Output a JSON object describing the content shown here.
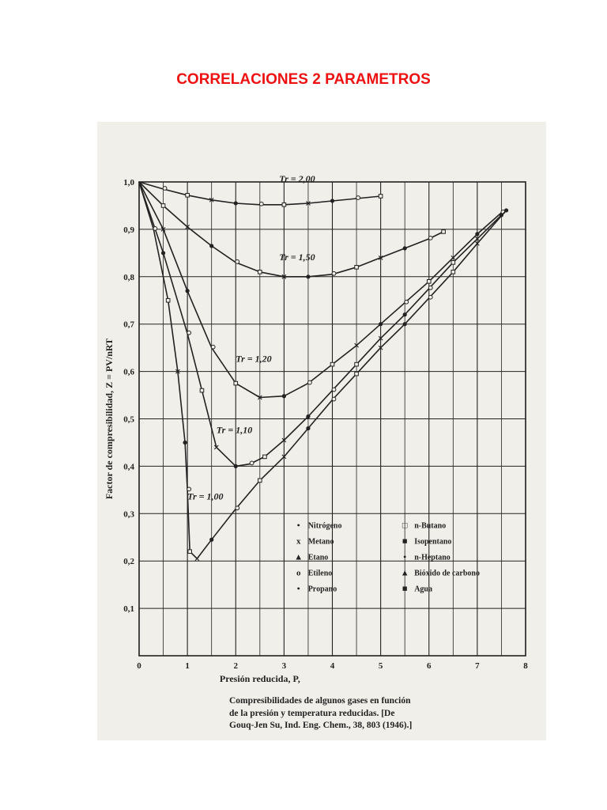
{
  "document": {
    "title": "CORRELACIONES 2 PARAMETROS"
  },
  "colors": {
    "title": "#ee1111",
    "ink": "#222222",
    "paper": "#f1efe9"
  },
  "chart_data": {
    "type": "line",
    "title": "",
    "xlabel": "Presión reducida, P,",
    "ylabel": "Factor de compresibilidad, Z = PV/nRT",
    "xlim": [
      0,
      8
    ],
    "ylim": [
      0,
      1.0
    ],
    "x_ticks": [
      "0",
      "1",
      "2",
      "3",
      "4",
      "5",
      "6",
      "7",
      "8"
    ],
    "y_ticks": [
      "0,1",
      "0,2",
      "0,3",
      "0,4",
      "0,5",
      "0,6",
      "0,7",
      "0,8",
      "0,9",
      "1,0"
    ],
    "grid": true,
    "curve_labels": [
      "Tr = 2,00",
      "Tr = 1,50",
      "Tr = 1,20",
      "Tr = 1,10",
      "Tr = 1,00"
    ],
    "series": [
      {
        "name": "Tr = 2,00",
        "x": [
          0,
          0.5,
          1.0,
          1.5,
          2.0,
          2.5,
          3.0,
          3.5,
          4.0,
          4.5,
          5.0
        ],
        "y": [
          1.0,
          0.985,
          0.972,
          0.962,
          0.955,
          0.952,
          0.952,
          0.955,
          0.96,
          0.965,
          0.97
        ]
      },
      {
        "name": "Tr = 1,50",
        "x": [
          0,
          0.5,
          1.0,
          1.5,
          2.0,
          2.5,
          3.0,
          3.5,
          4.0,
          4.5,
          5.0,
          5.5,
          6.0,
          6.3
        ],
        "y": [
          1.0,
          0.95,
          0.905,
          0.865,
          0.83,
          0.81,
          0.8,
          0.8,
          0.805,
          0.82,
          0.84,
          0.86,
          0.88,
          0.895
        ]
      },
      {
        "name": "Tr = 1,20",
        "x": [
          0,
          0.5,
          1.0,
          1.5,
          2.0,
          2.5,
          3.0,
          3.5,
          4.0,
          4.5,
          5.0,
          5.5,
          6.0,
          6.5,
          7.0,
          7.5
        ],
        "y": [
          1.0,
          0.9,
          0.77,
          0.65,
          0.575,
          0.545,
          0.548,
          0.575,
          0.615,
          0.655,
          0.7,
          0.745,
          0.79,
          0.84,
          0.89,
          0.935
        ]
      },
      {
        "name": "Tr = 1,10",
        "x": [
          0,
          0.5,
          1.0,
          1.3,
          1.6,
          2.0,
          2.3,
          2.6,
          3.0,
          3.5,
          4.0,
          4.5,
          5.0,
          5.5,
          6.0,
          6.5,
          7.0,
          7.5
        ],
        "y": [
          1.0,
          0.85,
          0.68,
          0.56,
          0.44,
          0.4,
          0.405,
          0.42,
          0.455,
          0.505,
          0.56,
          0.615,
          0.67,
          0.72,
          0.775,
          0.83,
          0.88,
          0.93
        ]
      },
      {
        "name": "Tr = 1,00",
        "x": [
          0,
          0.3,
          0.6,
          0.8,
          0.95,
          1.0,
          1.05,
          1.2,
          1.5,
          2.0,
          2.5,
          3.0,
          3.5,
          4.0,
          4.5,
          5.0,
          5.5,
          6.0,
          6.5,
          7.0,
          7.6
        ],
        "y": [
          1.0,
          0.9,
          0.75,
          0.6,
          0.45,
          0.35,
          0.22,
          0.205,
          0.245,
          0.31,
          0.37,
          0.42,
          0.48,
          0.54,
          0.595,
          0.65,
          0.7,
          0.755,
          0.81,
          0.87,
          0.94
        ]
      }
    ],
    "legend": {
      "placement": "bottom-right",
      "entries": [
        {
          "marker": "•",
          "label": "Nitrógeno"
        },
        {
          "marker": "□",
          "label": "n-Butano"
        },
        {
          "marker": "x",
          "label": "Metano"
        },
        {
          "marker": "■",
          "label": "Isopentano"
        },
        {
          "marker": "▲",
          "label": "Etano"
        },
        {
          "marker": "•",
          "label": "n-Heptano"
        },
        {
          "marker": "o",
          "label": "Etileno"
        },
        {
          "marker": "▲",
          "label": "Bióxido de carbono"
        },
        {
          "marker": "•",
          "label": "Propano"
        },
        {
          "marker": "■",
          "label": "Agua"
        }
      ]
    },
    "caption_lines": [
      "Compresibilidades de algunos gases en función",
      "de la presión y temperatura reducidas. [De",
      "Gouq-Jen Su, Ind. Eng. Chem., 38, 803 (1946).]"
    ]
  }
}
